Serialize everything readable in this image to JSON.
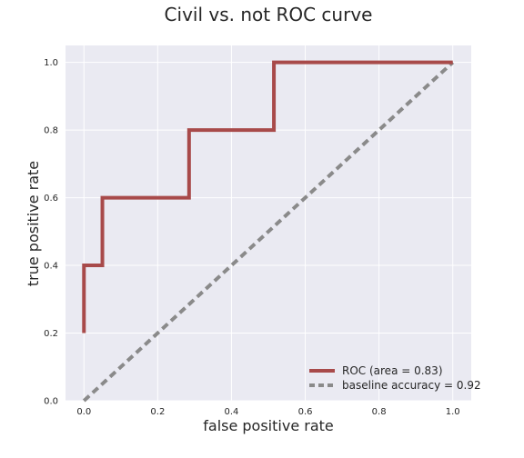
{
  "chart_data": {
    "type": "line",
    "title": "Civil vs. not ROC curve",
    "xlabel": "false positive rate",
    "ylabel": "true positive rate",
    "xlim": [
      -0.05,
      1.05
    ],
    "ylim": [
      0.0,
      1.05
    ],
    "xticks": [
      "0.0",
      "0.2",
      "0.4",
      "0.6",
      "0.8",
      "1.0"
    ],
    "yticks": [
      "0.0",
      "0.2",
      "0.4",
      "0.6",
      "0.8",
      "1.0"
    ],
    "grid": true,
    "legend_position": "lower-right",
    "series": [
      {
        "name": "ROC (area = 0.83)",
        "color": "#a84a4a",
        "style": "solid",
        "x": [
          0.0,
          0.0,
          0.0,
          0.05,
          0.05,
          0.285,
          0.285,
          0.515,
          0.515,
          1.0
        ],
        "y": [
          0.2,
          0.4,
          0.4,
          0.4,
          0.6,
          0.6,
          0.8,
          0.8,
          1.0,
          1.0
        ]
      },
      {
        "name": "baseline accuracy = 0.92",
        "color": "#8a8a8a",
        "style": "dashed",
        "x": [
          0.0,
          1.0
        ],
        "y": [
          0.0,
          1.0
        ]
      }
    ],
    "colors": {
      "plot_background": "#eaeaf2",
      "grid": "#ffffff"
    }
  }
}
